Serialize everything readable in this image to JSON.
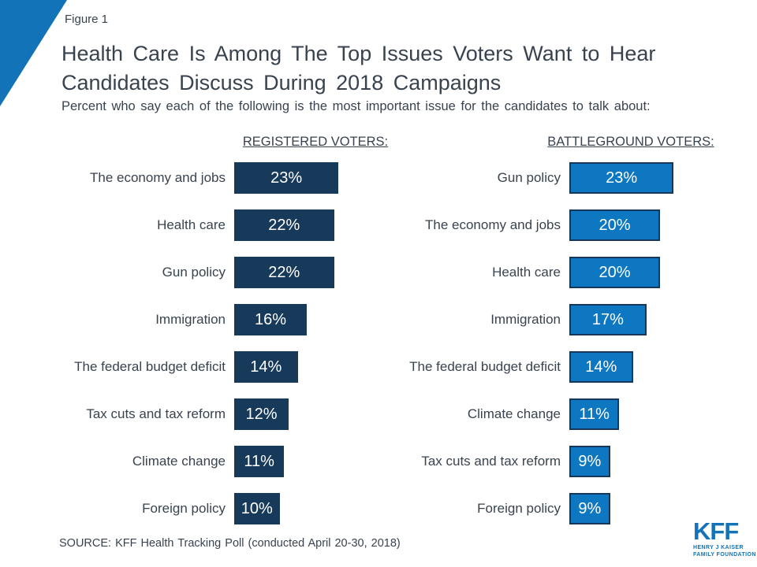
{
  "header": {
    "figure_label": "Figure 1",
    "title_line1": "Health Care Is Among The Top Issues Voters Want to Hear",
    "title_line2": "Candidates Discuss During 2018 Campaigns",
    "subtitle": "Percent who say each of the following is the most important issue for the candidates to talk about:"
  },
  "footer": {
    "source": "SOURCE: KFF Health Tracking Poll (conducted April 20-30, 2018)"
  },
  "logo": {
    "mark": "KFF",
    "sub_line1": "HENRY J KAISER",
    "sub_line2": "FAMILY FOUNDATION"
  },
  "colors": {
    "accent_blue": "#1373B8",
    "navy_bar": "#17395A",
    "bright_blue_bar": "#0D77C1",
    "bright_blue_bar_border": "#16365A",
    "text": "#39434F"
  },
  "chart_data": [
    {
      "type": "bar",
      "orientation": "horizontal",
      "group": "REGISTERED VOTERS:",
      "unit": "%",
      "bar_color": "#17395A",
      "bar_border": null,
      "categories": [
        "The economy and jobs",
        "Health care",
        "Gun policy",
        "Immigration",
        "The federal budget deficit",
        "Tax cuts and tax reform",
        "Climate change",
        "Foreign policy"
      ],
      "values": [
        23,
        22,
        22,
        16,
        14,
        12,
        11,
        10
      ],
      "xlim": [
        0,
        25
      ],
      "value_labels_inside_bars": true
    },
    {
      "type": "bar",
      "orientation": "horizontal",
      "group": "BATTLEGROUND VOTERS:",
      "unit": "%",
      "bar_color": "#0D77C1",
      "bar_border": "#16365A",
      "categories": [
        "Gun policy",
        "The economy and jobs",
        "Health care",
        "Immigration",
        "The federal budget deficit",
        "Climate change",
        "Tax cuts and tax reform",
        "Foreign policy"
      ],
      "values": [
        23,
        20,
        20,
        17,
        14,
        11,
        9,
        9
      ],
      "xlim": [
        0,
        25
      ],
      "value_labels_inside_bars": true
    }
  ]
}
